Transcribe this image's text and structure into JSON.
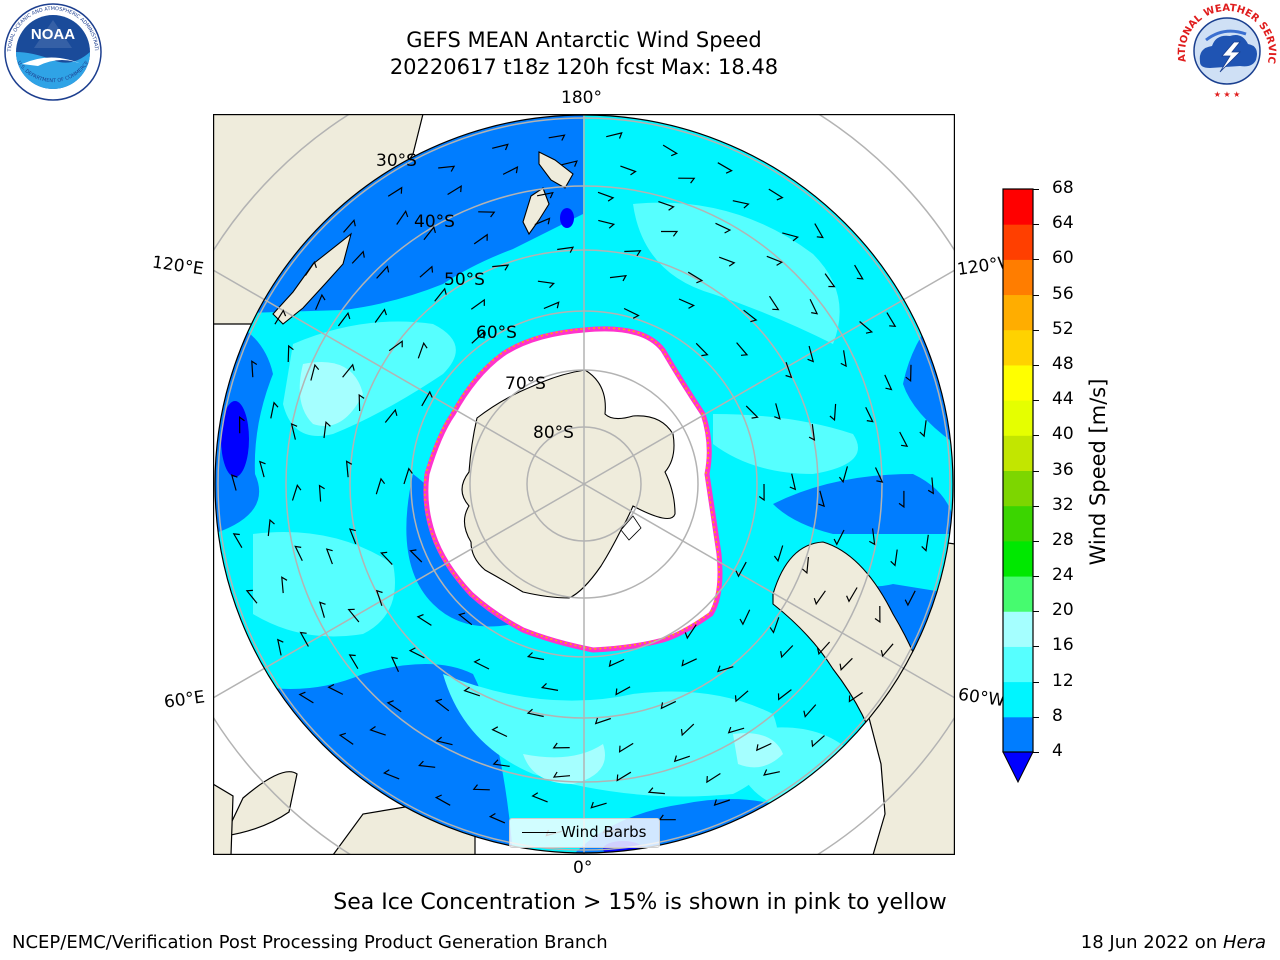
{
  "title": {
    "line1": "GEFS MEAN Antarctic Wind Speed",
    "line2": "20220617 t18z 120h fcst   Max: 18.48"
  },
  "logos": {
    "left": "NOAA",
    "left_ring": "NATIONAL OCEANIC AND ATMOSPHERIC ADMINISTRATION",
    "left_ring_bottom": "U.S. DEPARTMENT OF COMMERCE",
    "right_ring": "NATIONAL WEATHER SERVICE"
  },
  "map": {
    "longitude_labels": {
      "top": "180°",
      "bottom": "0°",
      "upper_left": "120°E",
      "upper_right": "120°W",
      "lower_left": "60°E",
      "lower_right": "60°W"
    },
    "latitude_labels": [
      "30°S",
      "40°S",
      "50°S",
      "60°S",
      "70°S",
      "80°S"
    ],
    "legend_label": "Wind Barbs",
    "colors": {
      "land": "#efecdc",
      "ice": "#ffffff",
      "ice_edge": [
        "#ff33cc",
        "#ffaa00",
        "#ffee00"
      ],
      "graticule": "#b3b3b3"
    }
  },
  "colorbar": {
    "label": "Wind Speed [m/s]",
    "ticks": [
      "68",
      "64",
      "60",
      "56",
      "52",
      "48",
      "44",
      "40",
      "36",
      "32",
      "28",
      "24",
      "20",
      "16",
      "12",
      "8",
      "4"
    ],
    "colors_bottom_to_top": [
      "#0000ff",
      "#007dff",
      "#00f5ff",
      "#56ffff",
      "#a5ffff",
      "#46fb6f",
      "#00e800",
      "#3bd500",
      "#7dd600",
      "#c2e600",
      "#e5ff00",
      "#ffff00",
      "#ffd200",
      "#ffad00",
      "#ff7d00",
      "#ff3f00",
      "#ff0000"
    ],
    "extend_below_color": "#0000ff"
  },
  "caption": "Sea Ice Concentration > 15% is shown in pink to yellow",
  "footer": {
    "credit": "NCEP/EMC/Verification Post Processing Product Generation Branch",
    "date": "18 Jun 2022 on ",
    "host": "Hera"
  }
}
